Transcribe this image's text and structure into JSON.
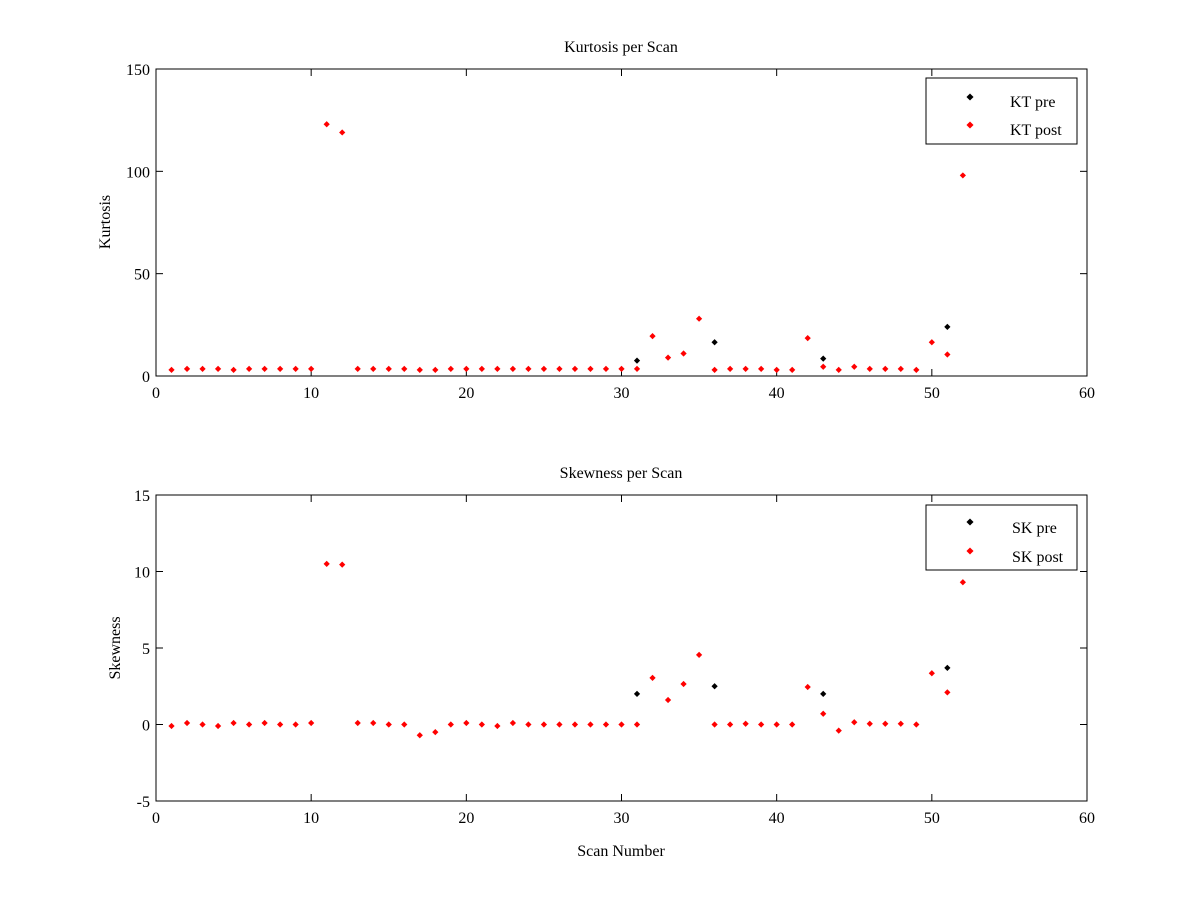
{
  "chart_data": [
    {
      "type": "scatter",
      "title": "Kurtosis per Scan",
      "xlabel": "",
      "ylabel": "Kurtosis",
      "xlim": [
        0,
        60
      ],
      "ylim": [
        0,
        150
      ],
      "xticks": [
        0,
        10,
        20,
        30,
        40,
        50,
        60
      ],
      "yticks": [
        0,
        50,
        100,
        150
      ],
      "grid": false,
      "legend_position": "top-right",
      "series": [
        {
          "name": "KT pre",
          "color": "#000000",
          "points": [
            [
              31,
              7.5
            ],
            [
              36,
              16.5
            ],
            [
              43,
              8.5
            ],
            [
              51,
              24
            ]
          ]
        },
        {
          "name": "KT post",
          "color": "#ff0000",
          "points": [
            [
              1,
              3
            ],
            [
              2,
              3.5
            ],
            [
              3,
              3.5
            ],
            [
              4,
              3.5
            ],
            [
              5,
              3
            ],
            [
              6,
              3.5
            ],
            [
              7,
              3.5
            ],
            [
              8,
              3.5
            ],
            [
              9,
              3.5
            ],
            [
              10,
              3.5
            ],
            [
              11,
              123
            ],
            [
              12,
              119
            ],
            [
              13,
              3.5
            ],
            [
              14,
              3.5
            ],
            [
              15,
              3.5
            ],
            [
              16,
              3.5
            ],
            [
              17,
              3
            ],
            [
              18,
              3
            ],
            [
              19,
              3.5
            ],
            [
              20,
              3.5
            ],
            [
              21,
              3.5
            ],
            [
              22,
              3.5
            ],
            [
              23,
              3.5
            ],
            [
              24,
              3.5
            ],
            [
              25,
              3.5
            ],
            [
              26,
              3.5
            ],
            [
              27,
              3.5
            ],
            [
              28,
              3.5
            ],
            [
              29,
              3.5
            ],
            [
              30,
              3.5
            ],
            [
              31,
              3.5
            ],
            [
              32,
              19.5
            ],
            [
              33,
              9
            ],
            [
              34,
              11
            ],
            [
              35,
              28
            ],
            [
              36,
              3
            ],
            [
              37,
              3.5
            ],
            [
              38,
              3.5
            ],
            [
              39,
              3.5
            ],
            [
              40,
              3
            ],
            [
              41,
              3
            ],
            [
              42,
              18.5
            ],
            [
              43,
              4.5
            ],
            [
              44,
              3
            ],
            [
              45,
              4.5
            ],
            [
              46,
              3.5
            ],
            [
              47,
              3.5
            ],
            [
              48,
              3.5
            ],
            [
              49,
              3
            ],
            [
              50,
              16.5
            ],
            [
              51,
              10.5
            ],
            [
              52,
              98
            ]
          ]
        }
      ]
    },
    {
      "type": "scatter",
      "title": "Skewness per Scan",
      "xlabel": "Scan Number",
      "ylabel": "Skewness",
      "xlim": [
        0,
        60
      ],
      "ylim": [
        -5,
        15
      ],
      "xticks": [
        0,
        10,
        20,
        30,
        40,
        50,
        60
      ],
      "yticks": [
        -5,
        0,
        5,
        10,
        15
      ],
      "grid": false,
      "legend_position": "top-right",
      "series": [
        {
          "name": "SK pre",
          "color": "#000000",
          "points": [
            [
              31,
              2
            ],
            [
              36,
              2.5
            ],
            [
              43,
              2
            ],
            [
              51,
              3.7
            ]
          ]
        },
        {
          "name": "SK post",
          "color": "#ff0000",
          "points": [
            [
              1,
              -0.1
            ],
            [
              2,
              0.1
            ],
            [
              3,
              0
            ],
            [
              4,
              -0.1
            ],
            [
              5,
              0.1
            ],
            [
              6,
              0
            ],
            [
              7,
              0.1
            ],
            [
              8,
              0
            ],
            [
              9,
              0
            ],
            [
              10,
              0.1
            ],
            [
              11,
              10.5
            ],
            [
              12,
              10.45
            ],
            [
              13,
              0.1
            ],
            [
              14,
              0.1
            ],
            [
              15,
              0
            ],
            [
              16,
              0
            ],
            [
              17,
              -0.7
            ],
            [
              18,
              -0.5
            ],
            [
              19,
              0
            ],
            [
              20,
              0.1
            ],
            [
              21,
              0
            ],
            [
              22,
              -0.1
            ],
            [
              23,
              0.1
            ],
            [
              24,
              0
            ],
            [
              25,
              0
            ],
            [
              26,
              0
            ],
            [
              27,
              0
            ],
            [
              28,
              0
            ],
            [
              29,
              0
            ],
            [
              30,
              0
            ],
            [
              31,
              0
            ],
            [
              32,
              3.05
            ],
            [
              33,
              1.6
            ],
            [
              34,
              2.65
            ],
            [
              35,
              4.55
            ],
            [
              36,
              0
            ],
            [
              37,
              0
            ],
            [
              38,
              0.05
            ],
            [
              39,
              0
            ],
            [
              40,
              0
            ],
            [
              41,
              0
            ],
            [
              42,
              2.45
            ],
            [
              43,
              0.7
            ],
            [
              44,
              -0.4
            ],
            [
              45,
              0.15
            ],
            [
              46,
              0.05
            ],
            [
              47,
              0.05
            ],
            [
              48,
              0.05
            ],
            [
              49,
              0
            ],
            [
              50,
              3.35
            ],
            [
              51,
              2.1
            ],
            [
              52,
              9.3
            ]
          ]
        }
      ]
    }
  ]
}
